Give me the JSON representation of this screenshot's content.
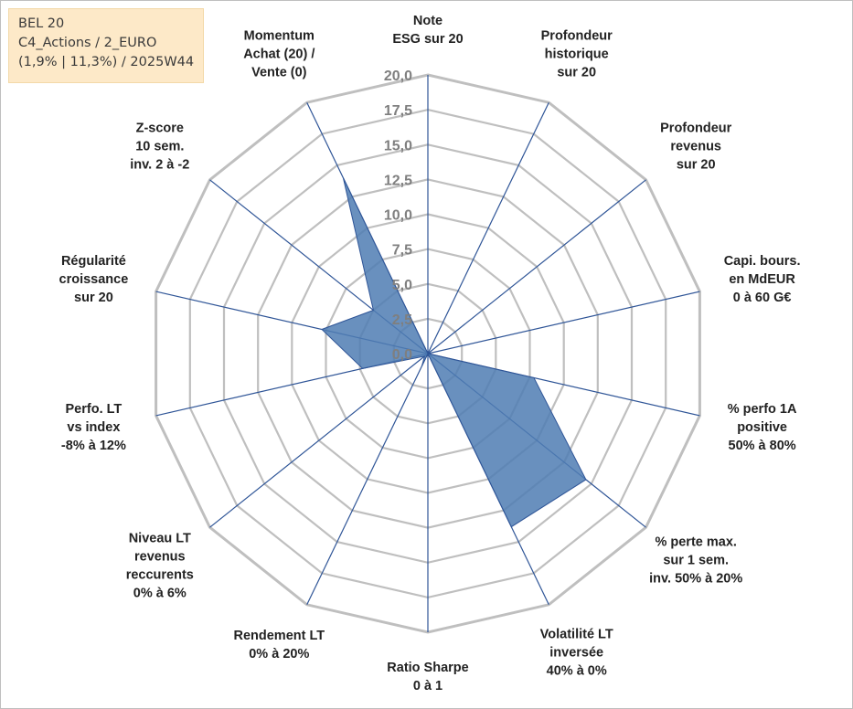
{
  "info_box": {
    "line1": "BEL 20",
    "line2": "C4_Actions / 2_EURO",
    "line3": "(1,9% | 11,3%) / 2025W44"
  },
  "chart_data": {
    "type": "radar",
    "rmin": 0,
    "rmax": 20,
    "tick_labels": [
      "0,0",
      "2,5",
      "5,0",
      "7,5",
      "10,0",
      "12,5",
      "15,0",
      "17,5",
      "20,0"
    ],
    "axes": [
      [
        "Note",
        "ESG sur 20"
      ],
      [
        "Profondeur",
        "historique",
        "sur 20"
      ],
      [
        "Profondeur",
        "revenus",
        "sur 20"
      ],
      [
        "Capi. bours.",
        "en MdEUR",
        "0 à 60 G€"
      ],
      [
        "% perfo 1A",
        "positive",
        "50% à 80%"
      ],
      [
        "% perte max.",
        "sur 1 sem.",
        "inv. 50% à 20%"
      ],
      [
        "Volatilité LT",
        "inversée",
        "40% à 0%"
      ],
      [
        "Ratio Sharpe",
        "0 à 1"
      ],
      [
        "Rendement LT",
        "0% à 20%"
      ],
      [
        "Niveau LT",
        "revenus",
        "reccurents",
        "0% à 6%"
      ],
      [
        "Perfo. LT",
        "vs index",
        "-8% à 12%"
      ],
      [
        "Régularité",
        "croissance",
        "sur 20"
      ],
      [
        "Z-score",
        "10 sem.",
        "inv. 2 à -2"
      ],
      [
        "Momentum",
        "Achat (20) /",
        "Vente (0)"
      ]
    ],
    "series": [
      {
        "values": [
          0,
          0,
          0,
          0,
          7.8,
          14.5,
          13.8,
          0,
          1.0,
          0.3,
          4.8,
          7.8,
          5.0,
          14.0
        ]
      }
    ],
    "grid": true,
    "colors": {
      "fill": "#4f7cb3",
      "stroke": "#2f5597",
      "grid": "#bfbfbf",
      "spoke": "#2f5597"
    }
  }
}
